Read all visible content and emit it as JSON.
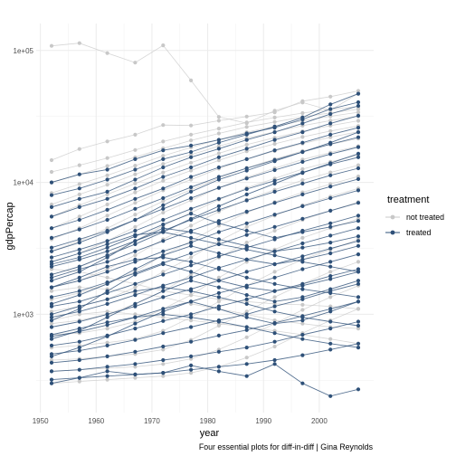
{
  "chart_data": {
    "type": "line",
    "xlabel": "year",
    "ylabel": "gdpPercap",
    "caption": "Four essential plots for diff-in-diff | Gina Reynolds",
    "x_scale": "linear",
    "y_scale": "log10",
    "xlim": [
      1949.25,
      2009.75
    ],
    "ylim": [
      180,
      160000
    ],
    "x_ticks": [
      1950,
      1960,
      1970,
      1980,
      1990,
      2000
    ],
    "x_tick_labels": [
      "1950",
      "1960",
      "1970",
      "1980",
      "1990",
      "2000"
    ],
    "y_ticks": [
      1000,
      10000,
      100000
    ],
    "y_tick_labels": [
      "1e+03",
      "1e+04",
      "1e+05"
    ],
    "grid": true,
    "legend": {
      "title": "treatment",
      "position": "right",
      "entries": [
        {
          "label": "not treated",
          "color": "#c8c8c8"
        },
        {
          "label": "treated",
          "color": "#2e5078"
        }
      ]
    },
    "x": [
      1952,
      1957,
      1962,
      1967,
      1972,
      1977,
      1982,
      1987,
      1992,
      1997,
      2002,
      2007
    ],
    "series": [
      {
        "group": "not treated",
        "values": [
          108382,
          113523,
          95458,
          80895,
          109348,
          59265,
          31354,
          28118,
          34932,
          40301,
          35110,
          47307
        ]
      },
      {
        "group": "not treated",
        "values": [
          14734,
          17909,
          20431,
          22966,
          27195,
          26982,
          29341,
          31541,
          33966,
          41283,
          44684,
          49357
        ]
      },
      {
        "group": "not treated",
        "values": [
          12000,
          13500,
          15300,
          17600,
          20400,
          23000,
          25600,
          28500,
          31000,
          33500,
          35800,
          37500
        ]
      },
      {
        "group": "not treated",
        "values": [
          10000,
          11500,
          13300,
          15500,
          18100,
          20800,
          23500,
          26300,
          28700,
          31300,
          33600,
          35900
        ]
      },
      {
        "group": "not treated",
        "values": [
          8300,
          9700,
          11300,
          13400,
          15900,
          18400,
          21100,
          24000,
          26600,
          29300,
          31700,
          34000
        ]
      },
      {
        "group": "not treated",
        "values": [
          6800,
          8100,
          9600,
          11500,
          13800,
          16200,
          18800,
          21600,
          24200,
          26900,
          29400,
          31700
        ]
      },
      {
        "group": "not treated",
        "values": [
          5500,
          6700,
          8100,
          9800,
          11900,
          14100,
          16600,
          19300,
          21800,
          24400,
          26900,
          29300
        ]
      },
      {
        "group": "not treated",
        "values": [
          4500,
          5500,
          6800,
          8400,
          10300,
          12300,
          14700,
          17200,
          19600,
          22100,
          24500,
          26800
        ]
      },
      {
        "group": "not treated",
        "values": [
          3700,
          4500,
          5600,
          7000,
          8700,
          10500,
          12700,
          15000,
          17300,
          19700,
          22000,
          24200
        ]
      },
      {
        "group": "not treated",
        "values": [
          3000,
          3600,
          4500,
          5700,
          7200,
          8800,
          10800,
          12900,
          15000,
          17300,
          19400,
          21500
        ]
      },
      {
        "group": "not treated",
        "values": [
          2500,
          2900,
          3600,
          4600,
          5900,
          7300,
          9100,
          10900,
          12800,
          14900,
          16800,
          18800
        ]
      },
      {
        "group": "not treated",
        "values": [
          2000,
          2300,
          2800,
          3600,
          4700,
          5900,
          7400,
          9100,
          10700,
          12600,
          14300,
          16100
        ]
      },
      {
        "group": "not treated",
        "values": [
          1600,
          1800,
          2200,
          2800,
          3700,
          4700,
          6000,
          7400,
          8800,
          10400,
          11900,
          13500
        ]
      },
      {
        "group": "not treated",
        "values": [
          1300,
          1450,
          1700,
          2100,
          2800,
          3600,
          4700,
          5900,
          7100,
          8400,
          9700,
          11100
        ]
      },
      {
        "group": "not treated",
        "values": [
          1050,
          1150,
          1300,
          1600,
          2100,
          2700,
          3600,
          4600,
          5600,
          6700,
          7800,
          9000
        ]
      },
      {
        "group": "not treated",
        "values": [
          850,
          900,
          1000,
          1200,
          1500,
          2000,
          2700,
          3500,
          4300,
          5200,
          6100,
          7100
        ]
      },
      {
        "group": "not treated",
        "values": [
          700,
          720,
          780,
          880,
          1100,
          1400,
          1900,
          2500,
          3100,
          3800,
          4500,
          5300
        ]
      },
      {
        "group": "not treated",
        "values": [
          560,
          580,
          610,
          650,
          750,
          950,
          1250,
          1650,
          2100,
          2600,
          3100,
          3700
        ]
      },
      {
        "group": "not treated",
        "values": [
          450,
          460,
          480,
          500,
          540,
          640,
          820,
          1050,
          1350,
          1700,
          2100,
          2500
        ]
      },
      {
        "group": "not treated",
        "values": [
          370,
          380,
          390,
          400,
          420,
          460,
          540,
          670,
          850,
          1080,
          1350,
          1650
        ]
      },
      {
        "group": "not treated",
        "values": [
          300,
          310,
          320,
          330,
          340,
          360,
          400,
          470,
          570,
          720,
          900,
          1100
        ]
      },
      {
        "group": "not treated",
        "values": [
          2200,
          2100,
          1900,
          1700,
          1500,
          1400,
          1300,
          1250,
          1200,
          1180,
          1150,
          1100
        ]
      },
      {
        "group": "not treated",
        "values": [
          1500,
          1600,
          1550,
          1450,
          1350,
          1200,
          1100,
          1000,
          900,
          850,
          800,
          780
        ]
      },
      {
        "group": "not treated",
        "values": [
          900,
          1000,
          1050,
          1000,
          950,
          900,
          850,
          800,
          750,
          700,
          650,
          600
        ]
      },
      {
        "group": "treated",
        "values": [
          10000,
          11500,
          12500,
          15000,
          17500,
          19000,
          21000,
          23500,
          26000,
          30000,
          36000,
          40500
        ]
      },
      {
        "group": "treated",
        "values": [
          8000,
          9000,
          10500,
          12500,
          15000,
          17000,
          20000,
          23000,
          26500,
          31000,
          39000,
          47000
        ]
      },
      {
        "group": "treated",
        "values": [
          6500,
          7500,
          8500,
          10500,
          13000,
          15500,
          18000,
          21000,
          24000,
          28000,
          33000,
          38000
        ]
      },
      {
        "group": "treated",
        "values": [
          5500,
          6500,
          7500,
          9000,
          11000,
          13000,
          15500,
          18000,
          21000,
          24000,
          28000,
          32000
        ]
      },
      {
        "group": "treated",
        "values": [
          4500,
          5200,
          6200,
          7500,
          9000,
          11000,
          13000,
          15000,
          17500,
          20000,
          23000,
          26000
        ]
      },
      {
        "group": "treated",
        "values": [
          3800,
          4400,
          5200,
          6300,
          7600,
          9200,
          11000,
          12800,
          14800,
          17000,
          19500,
          22000
        ]
      },
      {
        "group": "treated",
        "values": [
          3200,
          3700,
          4300,
          5200,
          6300,
          7600,
          9100,
          10700,
          12400,
          14300,
          16400,
          18500
        ]
      },
      {
        "group": "treated",
        "values": [
          2700,
          3100,
          3600,
          4300,
          5200,
          6300,
          7500,
          8900,
          10300,
          11900,
          13700,
          15500
        ]
      },
      {
        "group": "treated",
        "values": [
          2300,
          2600,
          3000,
          3600,
          4300,
          5200,
          6200,
          7300,
          8500,
          9800,
          11300,
          12800
        ]
      },
      {
        "group": "treated",
        "values": [
          1900,
          2200,
          2500,
          3000,
          3600,
          4300,
          5100,
          6000,
          7000,
          8100,
          9300,
          10600
        ]
      },
      {
        "group": "treated",
        "values": [
          1600,
          1800,
          2100,
          2500,
          3000,
          3500,
          4200,
          4900,
          5700,
          6600,
          7600,
          8700
        ]
      },
      {
        "group": "treated",
        "values": [
          1350,
          1500,
          1750,
          2050,
          2450,
          2900,
          3400,
          4000,
          4600,
          5300,
          6100,
          7000
        ]
      },
      {
        "group": "treated",
        "values": [
          1150,
          1250,
          1450,
          1700,
          2000,
          2350,
          2750,
          3200,
          3700,
          4300,
          4900,
          5600
        ]
      },
      {
        "group": "treated",
        "values": [
          950,
          1050,
          1200,
          1400,
          1650,
          1900,
          2250,
          2600,
          3000,
          3450,
          3950,
          4500
        ]
      },
      {
        "group": "treated",
        "values": [
          800,
          880,
          1000,
          1150,
          1350,
          1550,
          1800,
          2100,
          2400,
          2750,
          3150,
          3600
        ]
      },
      {
        "group": "treated",
        "values": [
          680,
          740,
          830,
          950,
          1100,
          1250,
          1450,
          1650,
          1900,
          2200,
          2500,
          2850
        ]
      },
      {
        "group": "treated",
        "values": [
          580,
          620,
          690,
          780,
          890,
          1000,
          1150,
          1300,
          1500,
          1700,
          1950,
          2200
        ]
      },
      {
        "group": "treated",
        "values": [
          500,
          530,
          580,
          640,
          720,
          800,
          900,
          1000,
          1150,
          1300,
          1500,
          1700
        ]
      },
      {
        "group": "treated",
        "values": [
          430,
          450,
          480,
          520,
          570,
          620,
          690,
          760,
          860,
          970,
          1100,
          1250
        ]
      },
      {
        "group": "treated",
        "values": [
          370,
          380,
          400,
          420,
          450,
          480,
          520,
          560,
          620,
          700,
          780,
          880
        ]
      },
      {
        "group": "treated",
        "values": [
          320,
          330,
          340,
          350,
          360,
          380,
          400,
          420,
          450,
          490,
          540,
          600
        ]
      },
      {
        "group": "treated",
        "values": [
          300,
          330,
          370,
          350,
          360,
          410,
          370,
          340,
          420,
          300,
          240,
          270
        ]
      },
      {
        "group": "treated",
        "values": [
          2400,
          2700,
          3200,
          3900,
          4800,
          5800,
          4900,
          4300,
          3800,
          4200,
          4600,
          5100
        ]
      },
      {
        "group": "treated",
        "values": [
          1800,
          2100,
          2700,
          3600,
          4500,
          4200,
          3700,
          3300,
          3000,
          3200,
          3500,
          3900
        ]
      },
      {
        "group": "treated",
        "values": [
          1200,
          1400,
          1700,
          2200,
          2800,
          3300,
          2900,
          2600,
          2400,
          2600,
          2900,
          3300
        ]
      },
      {
        "group": "treated",
        "values": [
          900,
          1100,
          1500,
          2000,
          2400,
          2100,
          1800,
          1600,
          1500,
          1650,
          1850,
          2100
        ]
      },
      {
        "group": "treated",
        "values": [
          650,
          750,
          950,
          1200,
          1500,
          1800,
          1600,
          1400,
          1250,
          1350,
          1550,
          1800
        ]
      },
      {
        "group": "treated",
        "values": [
          480,
          560,
          680,
          850,
          1050,
          1250,
          1100,
          950,
          850,
          900,
          1050,
          1250
        ]
      },
      {
        "group": "treated",
        "values": [
          2500,
          2900,
          3400,
          4000,
          4200,
          3800,
          3400,
          3100,
          2800,
          2500,
          2300,
          2100
        ]
      },
      {
        "group": "treated",
        "values": [
          1600,
          1900,
          2300,
          2600,
          2700,
          2500,
          2200,
          1900,
          1700,
          1550,
          1450,
          1350
        ]
      },
      {
        "group": "treated",
        "values": [
          1000,
          1150,
          1300,
          1500,
          1600,
          1500,
          1350,
          1200,
          1050,
          950,
          880,
          820
        ]
      },
      {
        "group": "treated",
        "values": [
          700,
          780,
          870,
          950,
          1000,
          950,
          880,
          800,
          720,
          650,
          600,
          560
        ]
      },
      {
        "group": "treated",
        "values": [
          3000,
          3500,
          4200,
          5200,
          6700,
          8500,
          10500,
          12300,
          14500,
          17000,
          20000,
          24000
        ]
      },
      {
        "group": "treated",
        "values": [
          2000,
          2300,
          2800,
          3400,
          4200,
          5300,
          6600,
          8100,
          9800,
          11800,
          14000,
          16500
        ]
      }
    ]
  }
}
